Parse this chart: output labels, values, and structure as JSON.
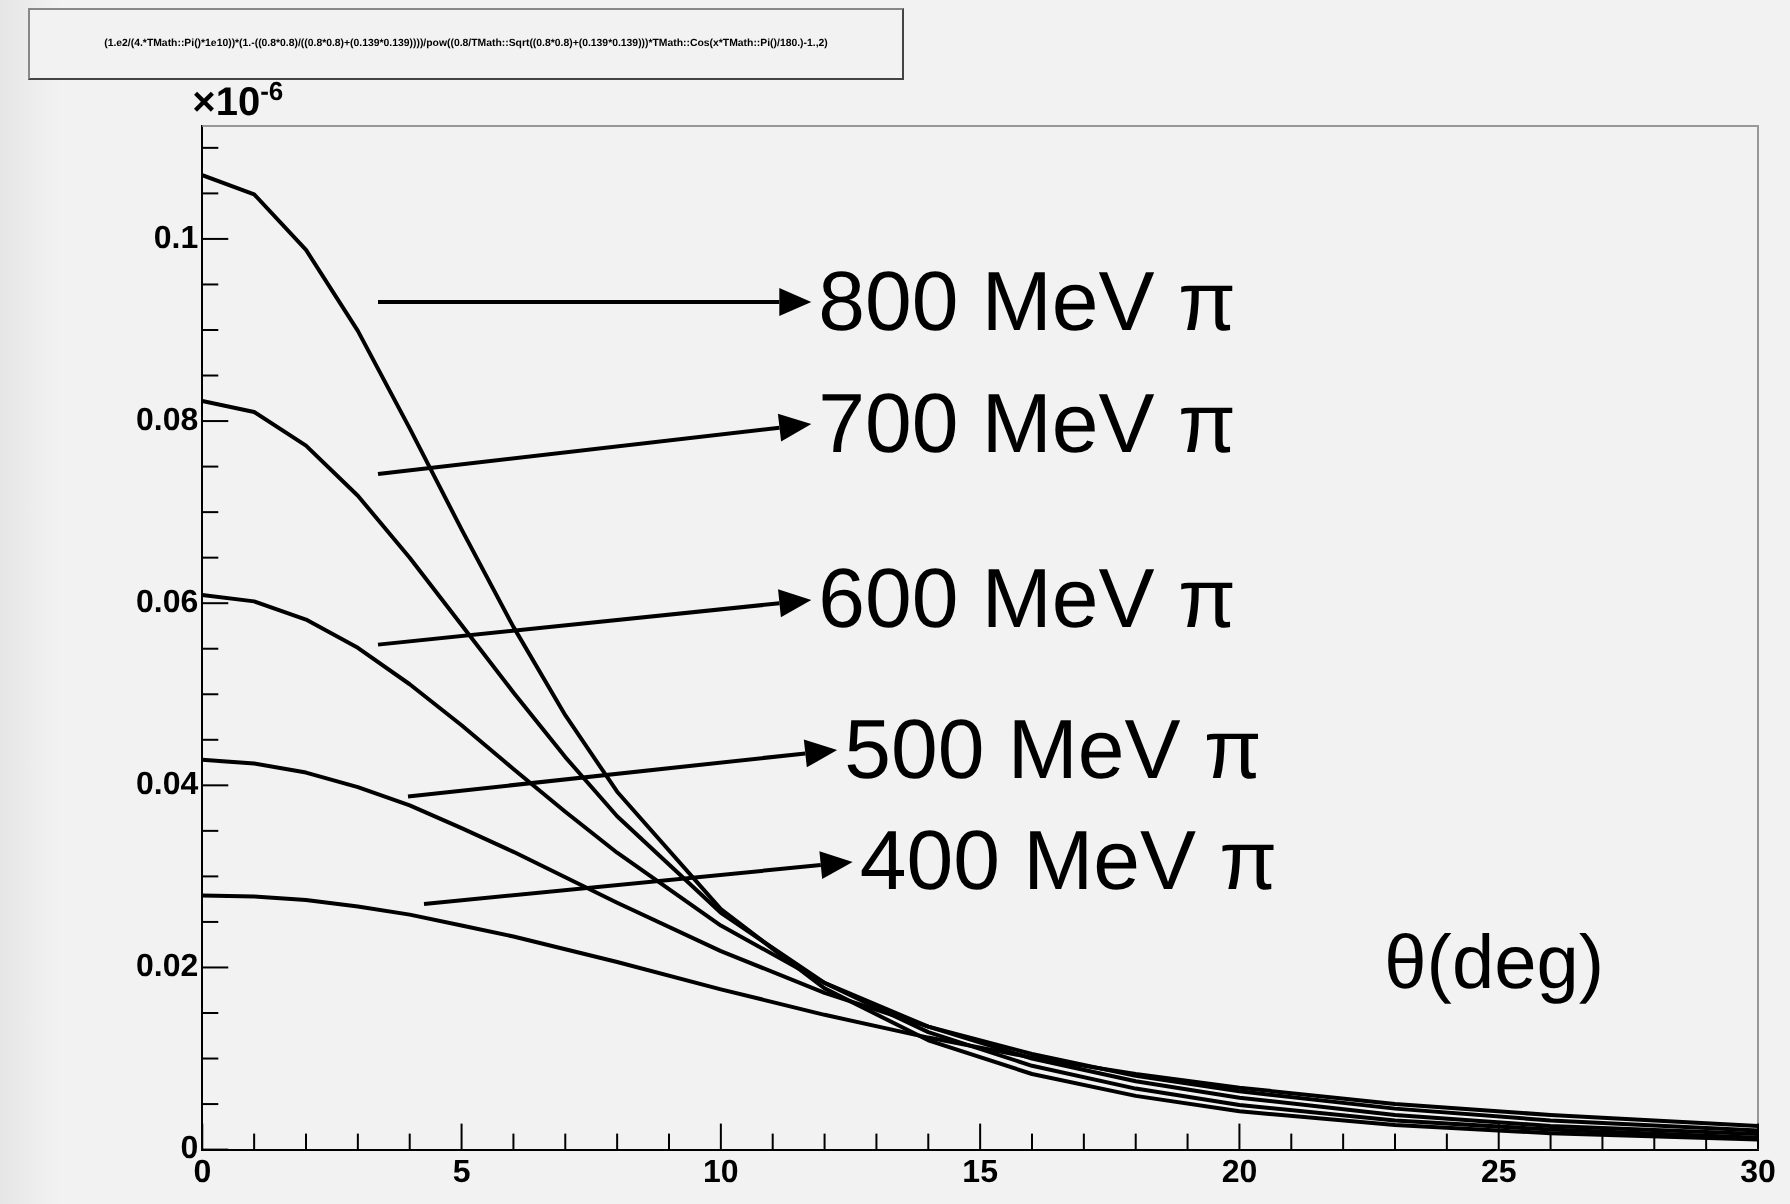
{
  "chart_data": {
    "type": "line",
    "title": "(1.e2/(4.*TMath::Pi()*1e10))*(1.-((0.8*0.8)/((0.8*0.8)+(0.139*0.139))))/pow((0.8/TMath::Sqrt((0.8*0.8)+(0.139*0.139)))*TMath::Cos(x*TMath::Pi()/180.)-1.,2)",
    "xlabel": "θ(deg)",
    "annotations": [
      "×10$^{-6}$"
    ],
    "x": [
      0,
      1,
      2,
      3,
      4,
      5,
      6,
      7,
      8,
      10,
      12,
      14,
      16,
      18,
      20,
      23,
      26,
      30
    ],
    "series": [
      {
        "name": "800 MeV π",
        "color": "#000000",
        "values": [
          0.107,
          0.1049,
          0.0988,
          0.0899,
          0.0792,
          0.0681,
          0.0574,
          0.0477,
          0.0393,
          0.0264,
          0.0177,
          0.012,
          0.0083,
          0.0059,
          0.0042,
          0.0027,
          0.0018,
          0.0011
        ]
      },
      {
        "name": "700 MeV π",
        "color": "#000000",
        "values": [
          0.0822,
          0.081,
          0.0773,
          0.0718,
          0.065,
          0.0576,
          0.0502,
          0.0431,
          0.0366,
          0.026,
          0.0183,
          0.0129,
          0.0092,
          0.0067,
          0.0049,
          0.0032,
          0.0022,
          0.0013
        ]
      },
      {
        "name": "600 MeV π",
        "color": "#000000",
        "values": [
          0.0609,
          0.0602,
          0.0582,
          0.0551,
          0.0511,
          0.0466,
          0.0418,
          0.0371,
          0.0326,
          0.0246,
          0.0183,
          0.0135,
          0.01,
          0.0075,
          0.0057,
          0.0038,
          0.0026,
          0.0017
        ]
      },
      {
        "name": "500 MeV π",
        "color": "#000000",
        "values": [
          0.0428,
          0.0424,
          0.0414,
          0.0398,
          0.0378,
          0.0353,
          0.0327,
          0.0299,
          0.0271,
          0.0218,
          0.0172,
          0.0135,
          0.0105,
          0.0081,
          0.0064,
          0.0045,
          0.0032,
          0.0021
        ]
      },
      {
        "name": "400 MeV π",
        "color": "#000000",
        "values": [
          0.0279,
          0.0278,
          0.0274,
          0.0267,
          0.0258,
          0.0246,
          0.0234,
          0.022,
          0.0206,
          0.0176,
          0.0148,
          0.0123,
          0.0101,
          0.0083,
          0.0068,
          0.005,
          0.0038,
          0.0026
        ]
      }
    ],
    "xlim": [
      0,
      30
    ],
    "ylim": [
      0,
      0.1124
    ],
    "xticks": [
      0,
      {
        "value": 1,
        "label": null
      },
      {
        "value": 2,
        "label": null
      },
      {
        "value": 3,
        "label": null
      },
      {
        "value": 4,
        "label": null
      },
      5,
      {
        "value": 6,
        "label": null
      },
      {
        "value": 7,
        "label": null
      },
      {
        "value": 8,
        "label": null
      },
      {
        "value": 9,
        "label": null
      },
      10,
      {
        "value": 11,
        "label": null
      },
      {
        "value": 12,
        "label": null
      },
      {
        "value": 13,
        "label": null
      },
      {
        "value": 14,
        "label": null
      },
      15,
      {
        "value": 16,
        "label": null
      },
      {
        "value": 17,
        "label": null
      },
      {
        "value": 18,
        "label": null
      },
      {
        "value": 19,
        "label": null
      },
      20,
      {
        "value": 21,
        "label": null
      },
      {
        "value": 22,
        "label": null
      },
      {
        "value": 23,
        "label": null
      },
      {
        "value": 24,
        "label": null
      },
      25,
      {
        "value": 26,
        "label": null
      },
      {
        "value": 27,
        "label": null
      },
      {
        "value": 28,
        "label": null
      },
      {
        "value": 29,
        "label": null
      },
      30
    ],
    "yticks": [
      0,
      {
        "value": 0.005,
        "label": null
      },
      {
        "value": 0.01,
        "label": null
      },
      {
        "value": 0.015,
        "label": null
      },
      0.02,
      {
        "value": 0.025,
        "label": null
      },
      {
        "value": 0.03,
        "label": null
      },
      {
        "value": 0.035,
        "label": null
      },
      0.04,
      {
        "value": 0.045,
        "label": null
      },
      {
        "value": 0.05,
        "label": null
      },
      {
        "value": 0.055,
        "label": null
      },
      0.06,
      {
        "value": 0.065,
        "label": null
      },
      {
        "value": 0.07,
        "label": null
      },
      {
        "value": 0.075,
        "label": null
      },
      0.08,
      {
        "value": 0.085,
        "label": null
      },
      {
        "value": 0.09,
        "label": null
      },
      {
        "value": 0.095,
        "label": null
      },
      0.1,
      {
        "value": 0.105,
        "label": null
      },
      {
        "value": 0.11,
        "label": null
      }
    ],
    "grid": false,
    "legend": "top",
    "marker": "none",
    "line_style": "solid"
  }
}
